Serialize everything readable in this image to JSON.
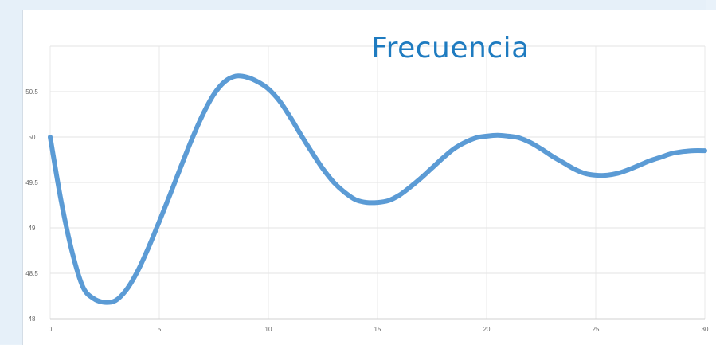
{
  "chart_data": {
    "type": "line",
    "title": "Frecuencia",
    "xlabel": "",
    "ylabel": "",
    "xlim": [
      0,
      30
    ],
    "ylim": [
      48,
      51
    ],
    "grid": true,
    "legend": "none",
    "x_ticks": [
      "0",
      "5",
      "10",
      "15",
      "20",
      "25",
      "30"
    ],
    "y_ticks": [
      "48",
      "48.5",
      "49",
      "49.5",
      "50",
      "50.5"
    ],
    "series": [
      {
        "color": "#5b9bd5",
        "x": [
          0,
          0.5,
          1.0,
          1.5,
          2.0,
          2.5,
          3.0,
          3.5,
          4.0,
          4.5,
          5.0,
          5.5,
          6.0,
          6.5,
          7.0,
          7.5,
          8.0,
          8.5,
          9.0,
          9.5,
          10.0,
          10.5,
          11.0,
          11.5,
          12.0,
          12.5,
          13.0,
          13.5,
          14.0,
          14.5,
          15.0,
          15.5,
          16.0,
          16.5,
          17.0,
          17.5,
          18.0,
          18.5,
          19.0,
          19.5,
          20.0,
          20.5,
          21.0,
          21.5,
          22.0,
          22.5,
          23.0,
          23.5,
          24.0,
          24.5,
          25.0,
          25.5,
          26.0,
          26.5,
          27.0,
          27.5,
          28.0,
          28.5,
          29.0,
          29.5,
          30.0
        ],
        "y": [
          50.0,
          49.3,
          48.74,
          48.35,
          48.22,
          48.18,
          48.2,
          48.32,
          48.52,
          48.78,
          49.07,
          49.37,
          49.68,
          49.98,
          50.25,
          50.47,
          50.61,
          50.67,
          50.66,
          50.61,
          50.53,
          50.4,
          50.22,
          50.02,
          49.83,
          49.65,
          49.5,
          49.39,
          49.31,
          49.28,
          49.28,
          49.3,
          49.36,
          49.45,
          49.55,
          49.66,
          49.77,
          49.87,
          49.94,
          49.99,
          50.01,
          50.02,
          50.01,
          49.99,
          49.94,
          49.87,
          49.79,
          49.72,
          49.65,
          49.6,
          49.58,
          49.58,
          49.6,
          49.64,
          49.69,
          49.74,
          49.78,
          49.82,
          49.84,
          49.85,
          49.85
        ]
      }
    ]
  }
}
